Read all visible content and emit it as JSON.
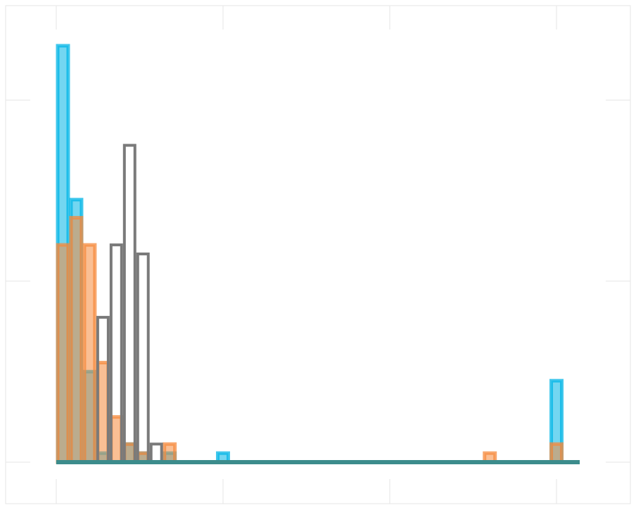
{
  "chart_data": {
    "type": "histogram",
    "title": "",
    "xlabel": "",
    "ylabel": "",
    "xlim": [
      0,
      7.5
    ],
    "ylim": [
      0,
      2.3
    ],
    "grid": true,
    "x_ticks": [
      0,
      2.5,
      5,
      7.5
    ],
    "y_ticks": [
      0,
      1,
      2
    ],
    "bin_width": 0.2,
    "series": [
      {
        "style": "filled",
        "color": "#00b4e6",
        "bins": [
          {
            "x": 0,
            "count": 2.3
          },
          {
            "x": 0.2,
            "count": 1.45
          },
          {
            "x": 0.4,
            "count": 0.5
          },
          {
            "x": 0.6,
            "count": 0.05
          },
          {
            "x": 1.0,
            "count": 0.1
          },
          {
            "x": 1.2,
            "count": 0.05
          },
          {
            "x": 1.6,
            "count": 0.05
          },
          {
            "x": 2.4,
            "count": 0.05
          },
          {
            "x": 7.4,
            "count": 0.45
          }
        ]
      },
      {
        "style": "filled",
        "color": "#f58a3c",
        "bins": [
          {
            "x": 0,
            "count": 1.2
          },
          {
            "x": 0.2,
            "count": 1.35
          },
          {
            "x": 0.4,
            "count": 1.2
          },
          {
            "x": 0.6,
            "count": 0.55
          },
          {
            "x": 0.8,
            "count": 0.25
          },
          {
            "x": 1.0,
            "count": 0.1
          },
          {
            "x": 1.2,
            "count": 0.05
          },
          {
            "x": 1.6,
            "count": 0.1
          },
          {
            "x": 6.4,
            "count": 0.05
          },
          {
            "x": 7.4,
            "count": 0.1
          }
        ]
      },
      {
        "style": "step",
        "color": "#7a7a7a",
        "bins": [
          {
            "x": 0.6,
            "count": 0.8
          },
          {
            "x": 0.8,
            "count": 1.2
          },
          {
            "x": 1.0,
            "count": 1.75
          },
          {
            "x": 1.2,
            "count": 1.15
          },
          {
            "x": 1.4,
            "count": 0.1
          }
        ]
      }
    ]
  }
}
